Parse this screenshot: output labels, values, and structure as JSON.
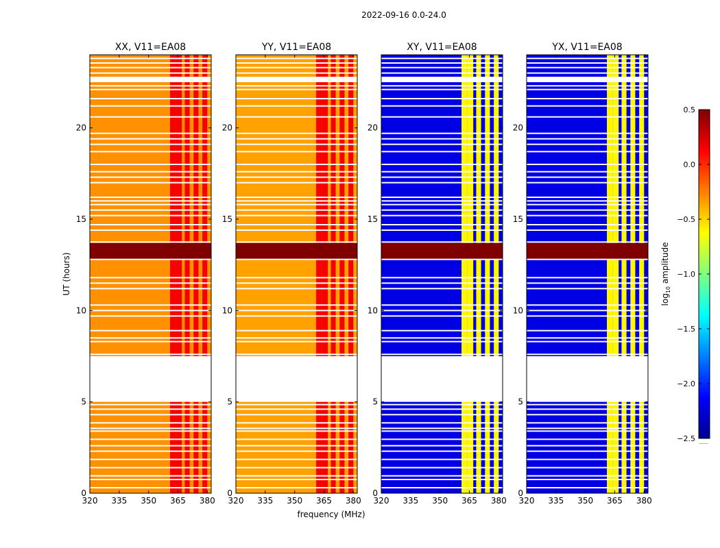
{
  "figure_title": "2022-09-16 0.0-24.0",
  "chart_data": {
    "type": "heatmap",
    "title": "2022-09-16 0.0-24.0",
    "xlabel": "frequency (MHz)",
    "ylabel": "UT (hours)",
    "xlim": [
      320,
      382
    ],
    "ylim": [
      0,
      24
    ],
    "x_ticks": [
      320,
      335,
      350,
      365,
      380
    ],
    "y_ticks": [
      0,
      5,
      10,
      15,
      20
    ],
    "colorbar": {
      "label_prefix": "log",
      "label_sub": "10",
      "label_suffix": " amplitude",
      "range": [
        -2.5,
        0.5
      ],
      "ticks": [
        "0.5",
        "0.0",
        "−0.5",
        "−1.0",
        "−1.5",
        "−2.0",
        "−2.5"
      ],
      "tick_values": [
        0.5,
        0.0,
        -0.5,
        -1.0,
        -1.5,
        -2.0,
        -2.5
      ],
      "colormap": "jet",
      "footer": "......"
    },
    "panels": [
      {
        "title": "XX, V11=EA08",
        "base_level": -0.3,
        "band_level": 0.15
      },
      {
        "title": "YY, V11=EA08",
        "base_level": -0.35,
        "band_level": 0.15
      },
      {
        "title": "XY, V11=EA08",
        "base_level": -2.2,
        "band_level": -0.6
      },
      {
        "title": "YX, V11=EA08",
        "base_level": -2.2,
        "band_level": -0.6
      }
    ],
    "data_gap_hours": [
      5.0,
      7.5
    ],
    "data_gap_hours_2": [
      22.5,
      22.8
    ],
    "rfi_band_hours": [
      12.8,
      13.7
    ],
    "rfi_level": 0.5,
    "strong_channels_mhz": [
      [
        361,
        364
      ],
      [
        364,
        367
      ],
      [
        368.5,
        371
      ],
      [
        373,
        375.5
      ],
      [
        377.5,
        380
      ]
    ],
    "blank_times_hours": [
      0.3,
      0.75,
      0.95,
      1.4,
      1.85,
      2.3,
      2.6,
      2.95,
      3.4,
      3.55,
      3.85,
      4.3,
      4.6,
      4.85,
      7.6,
      8.3,
      8.5,
      8.9,
      9.7,
      10.0,
      10.3,
      11.2,
      11.5,
      11.8,
      12.8,
      13.75,
      14.4,
      14.7,
      15.2,
      15.5,
      15.8,
      16.0,
      16.2,
      17.0,
      17.3,
      17.6,
      18.0,
      18.7,
      19.1,
      19.4,
      19.7,
      20.6,
      21.2,
      21.6,
      22.1,
      22.3,
      23.0,
      23.3,
      23.55,
      23.8
    ]
  }
}
